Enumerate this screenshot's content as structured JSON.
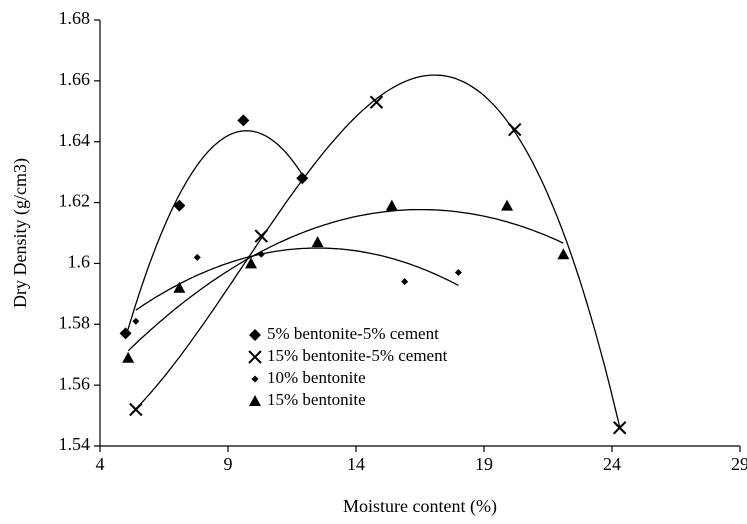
{
  "chart_data": {
    "type": "scatter",
    "x_label": "Moisture content (%)",
    "y_label": "Dry Density  (g/cm3)",
    "xlim": [
      4,
      29
    ],
    "xticks": [
      4,
      9,
      14,
      19,
      24,
      29
    ],
    "ylim": [
      1.54,
      1.68
    ],
    "yticks": [
      1.54,
      1.56,
      1.58,
      1.6,
      1.62,
      1.64,
      1.66,
      1.68
    ],
    "grid": false,
    "legend": "inside-bottom",
    "series": [
      {
        "name": "5% bentonite-5%  cement",
        "color": "#000000",
        "marker": "diamond",
        "trendline": 2,
        "x": [
          5.0,
          7.1,
          9.6,
          11.9
        ],
        "values": [
          1.577,
          1.619,
          1.647,
          1.628
        ]
      },
      {
        "name": "15% bentonite-5%  cement",
        "color": "#000000",
        "marker": "cross",
        "trendline": 3,
        "x": [
          5.4,
          10.3,
          14.8,
          20.2,
          24.3
        ],
        "values": [
          1.552,
          1.609,
          1.653,
          1.644,
          1.546
        ]
      },
      {
        "name": "10% bentonite",
        "color": "#000000",
        "marker": "small-diamond",
        "trendline": 2,
        "x": [
          5.4,
          7.8,
          10.3,
          15.9,
          18.0
        ],
        "values": [
          1.581,
          1.602,
          1.603,
          1.594,
          1.597
        ]
      },
      {
        "name": "15% bentonite",
        "color": "#000000",
        "marker": "triangle",
        "trendline": 2,
        "x": [
          5.1,
          7.1,
          9.9,
          12.5,
          15.4,
          19.9,
          22.1
        ],
        "values": [
          1.569,
          1.592,
          1.6,
          1.607,
          1.619,
          1.619,
          1.603
        ]
      }
    ]
  }
}
